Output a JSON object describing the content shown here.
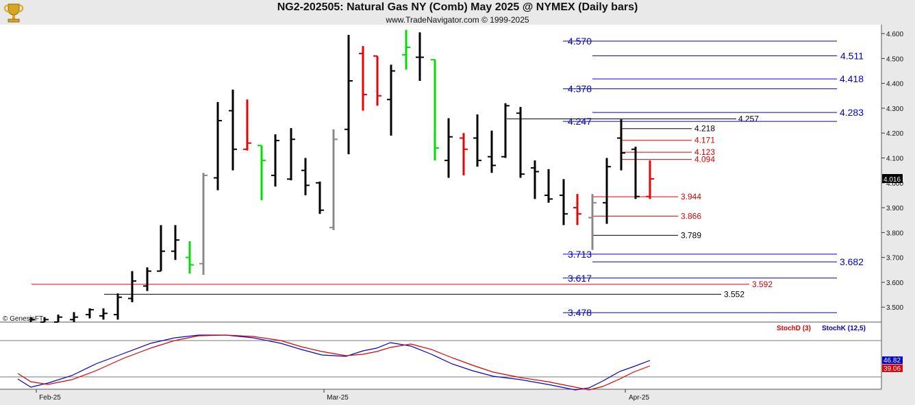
{
  "header": {
    "title": "NG2-202505:  Natural Gas NY (Comb) May 2025 @ NYMEX  (Daily bars)",
    "subtitle": "www.TradeNavigator.com © 1999-2025"
  },
  "watermark": "© GenesisFT",
  "colors": {
    "bar_up": "#000000",
    "bar_down": "#000000",
    "bar_green": "#00dd00",
    "bar_red": "#ee0000",
    "bar_gray": "#888888",
    "level_blue": "#0000cc",
    "level_red": "#dd0000",
    "level_black": "#000000",
    "stochK": "#0000cc",
    "stochD": "#dd0000",
    "last_price_bg": "#000000"
  },
  "chart_data": [
    {
      "type": "candlestick-ohlc",
      "title": "NG2-202505:  Natural Gas NY (Comb) May 2025 @ NYMEX  (Daily bars)",
      "x_tick_labels": [
        "Feb-25",
        "Mar-25",
        "Apr-25"
      ],
      "y_tick_labels": [
        "4.600",
        "4.500",
        "4.400",
        "4.300",
        "4.200",
        "4.100",
        "4.000",
        "3.900",
        "3.800",
        "3.700",
        "3.600",
        "3.500"
      ],
      "ylim": [
        3.44,
        4.625
      ],
      "last_price": "4.016",
      "bars": [
        {
          "x": 45,
          "o": 3.43,
          "h": 3.46,
          "l": 3.42,
          "c": 3.45,
          "color": "black"
        },
        {
          "x": 65,
          "o": 3.44,
          "h": 3.46,
          "l": 3.42,
          "c": 3.45,
          "color": "black"
        },
        {
          "x": 85,
          "o": 3.44,
          "h": 3.47,
          "l": 3.43,
          "c": 3.46,
          "color": "black"
        },
        {
          "x": 108,
          "o": 3.45,
          "h": 3.48,
          "l": 3.44,
          "c": 3.46,
          "color": "black"
        },
        {
          "x": 131,
          "o": 3.47,
          "h": 3.495,
          "l": 3.455,
          "c": 3.49,
          "color": "black"
        },
        {
          "x": 151,
          "o": 3.465,
          "h": 3.495,
          "l": 3.45,
          "c": 3.475,
          "color": "black"
        },
        {
          "x": 172,
          "o": 3.47,
          "h": 3.555,
          "l": 3.45,
          "c": 3.54,
          "color": "black"
        },
        {
          "x": 193,
          "o": 3.535,
          "h": 3.645,
          "l": 3.52,
          "c": 3.605,
          "color": "black"
        },
        {
          "x": 215,
          "o": 3.585,
          "h": 3.66,
          "l": 3.565,
          "c": 3.645,
          "color": "black"
        },
        {
          "x": 235,
          "o": 3.645,
          "h": 3.83,
          "l": 3.645,
          "c": 3.725,
          "color": "black"
        },
        {
          "x": 256,
          "o": 3.725,
          "h": 3.83,
          "l": 3.69,
          "c": 3.77,
          "color": "black"
        },
        {
          "x": 277,
          "o": 3.7,
          "h": 3.765,
          "l": 3.635,
          "c": 3.67,
          "color": "green"
        },
        {
          "x": 297,
          "o": 3.675,
          "h": 4.04,
          "l": 3.63,
          "c": 4.03,
          "color": "gray"
        },
        {
          "x": 318,
          "o": 4.02,
          "h": 4.325,
          "l": 3.97,
          "c": 4.25,
          "color": "black"
        },
        {
          "x": 340,
          "o": 4.29,
          "h": 4.375,
          "l": 4.05,
          "c": 4.135,
          "color": "black"
        },
        {
          "x": 361,
          "o": 4.135,
          "h": 4.335,
          "l": 4.13,
          "c": 4.16,
          "color": "red"
        },
        {
          "x": 382,
          "o": 4.15,
          "h": 4.15,
          "l": 3.93,
          "c": 4.09,
          "color": "green"
        },
        {
          "x": 402,
          "o": 4.03,
          "h": 4.195,
          "l": 3.985,
          "c": 4.17,
          "color": "black"
        },
        {
          "x": 425,
          "o": 4.015,
          "h": 4.22,
          "l": 4.01,
          "c": 4.175,
          "color": "black"
        },
        {
          "x": 446,
          "o": 4.05,
          "h": 4.1,
          "l": 3.95,
          "c": 3.99,
          "color": "black"
        },
        {
          "x": 467,
          "o": 4.0,
          "h": 4.005,
          "l": 3.875,
          "c": 3.89,
          "color": "black"
        },
        {
          "x": 487,
          "o": 3.82,
          "h": 4.215,
          "l": 3.81,
          "c": 4.175,
          "color": "gray"
        },
        {
          "x": 509,
          "o": 4.215,
          "h": 4.595,
          "l": 4.115,
          "c": 4.41,
          "color": "black"
        },
        {
          "x": 530,
          "o": 4.52,
          "h": 4.55,
          "l": 4.29,
          "c": 4.355,
          "color": "red"
        },
        {
          "x": 551,
          "o": 4.51,
          "h": 4.51,
          "l": 4.31,
          "c": 4.35,
          "color": "red"
        },
        {
          "x": 571,
          "o": 4.335,
          "h": 4.475,
          "l": 4.19,
          "c": 4.45,
          "color": "black"
        },
        {
          "x": 593,
          "o": 4.515,
          "h": 4.615,
          "l": 4.455,
          "c": 4.545,
          "color": "green"
        },
        {
          "x": 613,
          "o": 4.505,
          "h": 4.605,
          "l": 4.41,
          "c": 4.505,
          "color": "black"
        },
        {
          "x": 635,
          "o": 4.495,
          "h": 4.495,
          "l": 4.09,
          "c": 4.14,
          "color": "green"
        },
        {
          "x": 655,
          "o": 4.09,
          "h": 4.26,
          "l": 4.02,
          "c": 4.185,
          "color": "black"
        },
        {
          "x": 677,
          "o": 4.18,
          "h": 4.2,
          "l": 4.03,
          "c": 4.135,
          "color": "red"
        },
        {
          "x": 697,
          "o": 4.18,
          "h": 4.275,
          "l": 4.065,
          "c": 4.09,
          "color": "black"
        },
        {
          "x": 718,
          "o": 4.105,
          "h": 4.21,
          "l": 4.04,
          "c": 4.07,
          "color": "black"
        },
        {
          "x": 738,
          "o": 4.105,
          "h": 4.32,
          "l": 4.1,
          "c": 4.31,
          "color": "black"
        },
        {
          "x": 760,
          "o": 4.28,
          "h": 4.305,
          "l": 4.02,
          "c": 4.035,
          "color": "black"
        },
        {
          "x": 781,
          "o": 4.06,
          "h": 4.09,
          "l": 3.935,
          "c": 4.045,
          "color": "black"
        },
        {
          "x": 801,
          "o": 3.95,
          "h": 4.055,
          "l": 3.92,
          "c": 3.935,
          "color": "black"
        },
        {
          "x": 823,
          "o": 3.95,
          "h": 4.015,
          "l": 3.83,
          "c": 3.875,
          "color": "black"
        },
        {
          "x": 843,
          "o": 3.9,
          "h": 3.955,
          "l": 3.83,
          "c": 3.875,
          "color": "red"
        },
        {
          "x": 865,
          "o": 3.86,
          "h": 3.955,
          "l": 3.73,
          "c": 3.92,
          "color": "gray"
        },
        {
          "x": 886,
          "o": 3.92,
          "h": 4.1,
          "l": 3.835,
          "c": 4.065,
          "color": "black"
        },
        {
          "x": 907,
          "o": 4.18,
          "h": 4.255,
          "l": 4.05,
          "c": 4.12,
          "color": "black"
        },
        {
          "x": 928,
          "o": 4.135,
          "h": 4.145,
          "l": 3.935,
          "c": 3.945,
          "color": "black"
        },
        {
          "x": 949,
          "o": 3.945,
          "h": 4.09,
          "l": 3.935,
          "c": 4.016,
          "color": "red"
        }
      ],
      "levels": [
        {
          "value": 4.57,
          "label": "4.570",
          "color": "blue",
          "side": "left"
        },
        {
          "value": 4.511,
          "label": "4.511",
          "color": "blue",
          "side": "right"
        },
        {
          "value": 4.418,
          "label": "4.418",
          "color": "blue",
          "side": "right"
        },
        {
          "value": 4.378,
          "label": "4.378",
          "color": "blue",
          "side": "left"
        },
        {
          "value": 4.283,
          "label": "4.283",
          "color": "blue",
          "side": "right"
        },
        {
          "value": 4.257,
          "label": "4.257",
          "color": "black",
          "side": "mid"
        },
        {
          "value": 4.247,
          "label": "4.247",
          "color": "blue",
          "side": "left"
        },
        {
          "value": 4.218,
          "label": "4.218",
          "color": "black",
          "side": "short"
        },
        {
          "value": 4.171,
          "label": "4.171",
          "color": "red",
          "side": "short"
        },
        {
          "value": 4.123,
          "label": "4.123",
          "color": "red",
          "side": "short"
        },
        {
          "value": 4.094,
          "label": "4.094",
          "color": "red",
          "side": "short"
        },
        {
          "value": 3.944,
          "label": "3.944",
          "color": "red",
          "side": "short2"
        },
        {
          "value": 3.866,
          "label": "3.866",
          "color": "red",
          "side": "short2"
        },
        {
          "value": 3.789,
          "label": "3.789",
          "color": "black",
          "side": "short2"
        },
        {
          "value": 3.713,
          "label": "3.713",
          "color": "blue",
          "side": "left"
        },
        {
          "value": 3.682,
          "label": "3.682",
          "color": "blue",
          "side": "right"
        },
        {
          "value": 3.617,
          "label": "3.617",
          "color": "blue",
          "side": "left"
        },
        {
          "value": 3.592,
          "label": "3.592",
          "color": "red",
          "side": "long"
        },
        {
          "value": 3.552,
          "label": "3.552",
          "color": "black",
          "side": "long"
        },
        {
          "value": 3.478,
          "label": "3.478",
          "color": "blue",
          "side": "left"
        }
      ]
    },
    {
      "type": "line",
      "legend": [
        "StochD (3)",
        "StochK (12,5)"
      ],
      "ylim": [
        0,
        100
      ],
      "last_values": {
        "stochK": "46.82",
        "stochD": "39.06"
      },
      "series": [
        {
          "name": "StochK (12,5)",
          "x": [
            26,
            45,
            70,
            105,
            140,
            180,
            220,
            255,
            290,
            330,
            370,
            410,
            440,
            470,
            505,
            530,
            550,
            570,
            600,
            630,
            660,
            690,
            720,
            760,
            800,
            840,
            860,
            880,
            905,
            925,
            949
          ],
          "values": [
            20,
            8,
            14,
            25,
            42,
            57,
            72,
            80,
            84,
            84,
            80,
            72,
            63,
            55,
            53,
            61,
            65,
            73,
            68,
            56,
            42,
            32,
            24,
            19,
            12,
            4,
            7,
            17,
            31,
            38,
            47
          ]
        },
        {
          "name": "StochD (3)",
          "x": [
            26,
            45,
            70,
            105,
            140,
            180,
            220,
            255,
            290,
            330,
            370,
            410,
            440,
            470,
            505,
            530,
            550,
            570,
            600,
            630,
            660,
            690,
            720,
            760,
            800,
            840,
            860,
            880,
            905,
            925,
            949
          ],
          "values": [
            28,
            16,
            12,
            19,
            32,
            50,
            65,
            76,
            83,
            84,
            82,
            76,
            67,
            60,
            54,
            56,
            60,
            66,
            71,
            63,
            51,
            40,
            30,
            22,
            16,
            8,
            4,
            9,
            20,
            30,
            39
          ]
        }
      ]
    }
  ]
}
